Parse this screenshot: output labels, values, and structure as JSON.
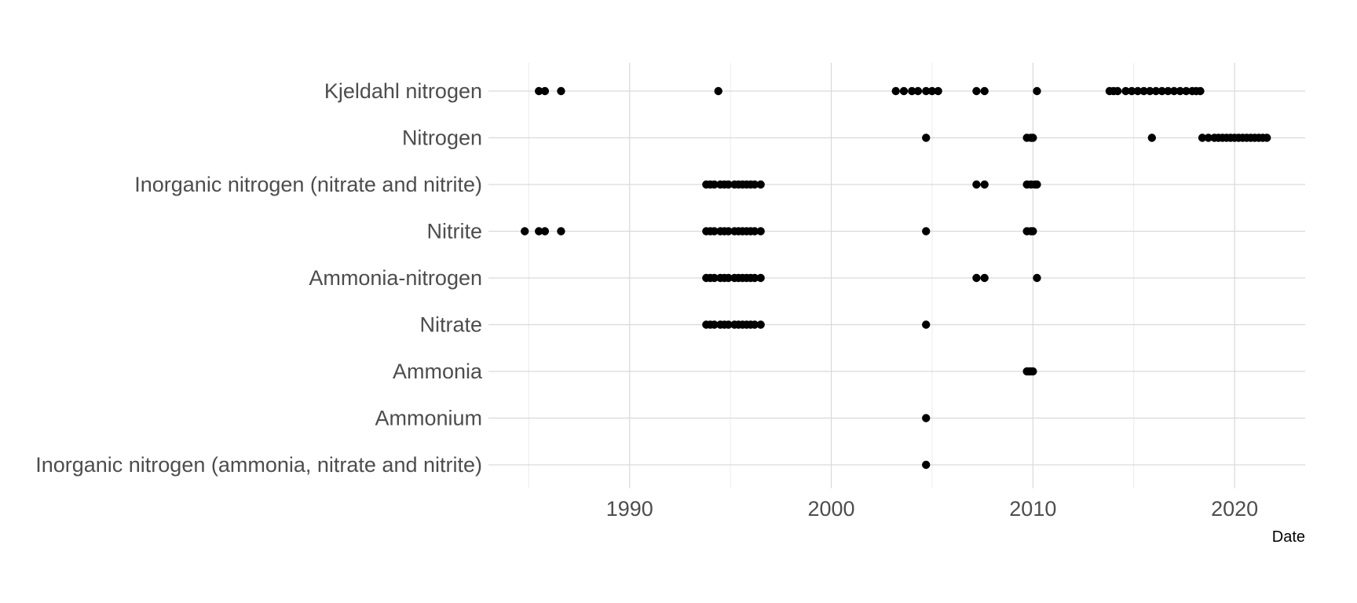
{
  "chart_data": {
    "type": "scatter",
    "title": "",
    "xlabel": "Date",
    "ylabel": "",
    "xlim": [
      1983,
      2023.5
    ],
    "x_ticks": [
      "1990",
      "2000",
      "2010",
      "2020"
    ],
    "categories": [
      "Kjeldahl nitrogen",
      "Nitrogen",
      "Inorganic nitrogen (nitrate and nitrite)",
      "Nitrite",
      "Ammonia-nitrogen",
      "Nitrate",
      "Ammonia",
      "Ammonium",
      "Inorganic nitrogen (ammonia, nitrate and nitrite)"
    ],
    "grid": true,
    "legend": "none",
    "point_color": "#000000",
    "series": [
      {
        "category": "Kjeldahl nitrogen",
        "x": [
          1985.5,
          1985.8,
          1986.6,
          1994.4,
          2003.2,
          2003.6,
          2004.0,
          2004.3,
          2004.7,
          2005.0,
          2005.3,
          2007.2,
          2007.6,
          2010.2,
          2013.8,
          2014.0,
          2014.2,
          2014.6,
          2014.9,
          2015.2,
          2015.5,
          2015.8,
          2016.1,
          2016.4,
          2016.7,
          2017.0,
          2017.3,
          2017.6,
          2017.9,
          2018.1,
          2018.3
        ]
      },
      {
        "category": "Nitrogen",
        "x": [
          2004.7,
          2009.7,
          2009.9,
          2010.0,
          2015.9,
          2018.4,
          2018.7,
          2019.0,
          2019.2,
          2019.4,
          2019.6,
          2019.8,
          2020.0,
          2020.2,
          2020.4,
          2020.6,
          2020.8,
          2021.0,
          2021.2,
          2021.4,
          2021.6
        ]
      },
      {
        "category": "Inorganic nitrogen (nitrate and nitrite)",
        "x": [
          1993.8,
          1994.0,
          1994.2,
          1994.5,
          1994.7,
          1994.9,
          1995.2,
          1995.4,
          1995.6,
          1995.8,
          1996.0,
          1996.2,
          1996.5,
          2007.2,
          2007.6,
          2009.7,
          2009.9,
          2010.1,
          2010.2
        ]
      },
      {
        "category": "Nitrite",
        "x": [
          1984.8,
          1985.5,
          1985.8,
          1986.6,
          1993.8,
          1994.0,
          1994.2,
          1994.5,
          1994.7,
          1994.9,
          1995.2,
          1995.4,
          1995.6,
          1995.8,
          1996.0,
          1996.2,
          1996.5,
          2004.7,
          2009.7,
          2009.9,
          2010.0
        ]
      },
      {
        "category": "Ammonia-nitrogen",
        "x": [
          1993.8,
          1994.0,
          1994.2,
          1994.5,
          1994.7,
          1994.9,
          1995.2,
          1995.4,
          1995.6,
          1995.8,
          1996.0,
          1996.2,
          1996.5,
          2007.2,
          2007.6,
          2010.2
        ]
      },
      {
        "category": "Nitrate",
        "x": [
          1993.8,
          1994.0,
          1994.2,
          1994.5,
          1994.7,
          1994.9,
          1995.2,
          1995.4,
          1995.6,
          1995.8,
          1996.0,
          1996.2,
          1996.5,
          2004.7
        ]
      },
      {
        "category": "Ammonia",
        "x": [
          2009.7,
          2009.8,
          2009.9,
          2010.0
        ]
      },
      {
        "category": "Ammonium",
        "x": [
          2004.7
        ]
      },
      {
        "category": "Inorganic nitrogen (ammonia, nitrate and nitrite)",
        "x": [
          2004.7
        ]
      }
    ]
  }
}
